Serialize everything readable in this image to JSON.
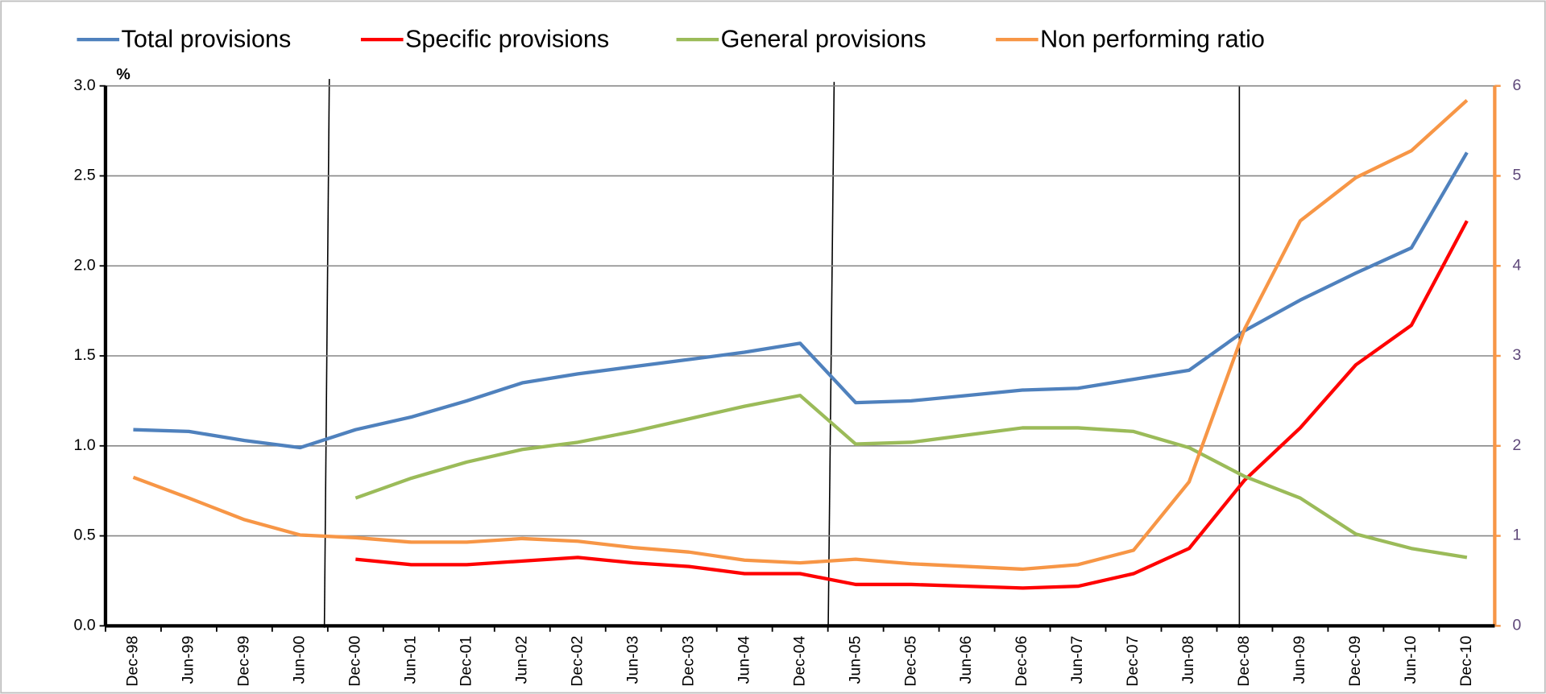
{
  "chart_data": {
    "type": "line",
    "y_unit": "%",
    "categories": [
      "Dec-98",
      "Jun-99",
      "Dec-99",
      "Jun-00",
      "Dec-00",
      "Jun-01",
      "Dec-01",
      "Jun-02",
      "Dec-02",
      "Jun-03",
      "Dec-03",
      "Jun-04",
      "Dec-04",
      "Jun-05",
      "Dec-05",
      "Jun-06",
      "Dec-06",
      "Jun-07",
      "Dec-07",
      "Jun-08",
      "Dec-08",
      "Jun-09",
      "Dec-09",
      "Jun-10",
      "Dec-10"
    ],
    "series": [
      {
        "name": "Total provisions",
        "color": "#4f81bd",
        "values": [
          1.09,
          1.08,
          1.03,
          0.99,
          1.09,
          1.16,
          1.25,
          1.35,
          1.4,
          1.44,
          1.48,
          1.52,
          1.57,
          1.24,
          1.25,
          1.28,
          1.31,
          1.32,
          1.37,
          1.42,
          1.64,
          1.81,
          1.96,
          2.1,
          2.63
        ]
      },
      {
        "name": "Specific provisions",
        "color": "#ff0000",
        "values": [
          null,
          null,
          null,
          null,
          0.37,
          0.34,
          0.34,
          0.36,
          0.38,
          0.35,
          0.33,
          0.29,
          0.29,
          0.23,
          0.23,
          0.22,
          0.21,
          0.22,
          0.29,
          0.43,
          0.81,
          1.1,
          1.45,
          1.67,
          2.25
        ]
      },
      {
        "name": "General provisions",
        "color": "#9bbb59",
        "values": [
          null,
          null,
          null,
          null,
          0.71,
          0.82,
          0.91,
          0.98,
          1.02,
          1.08,
          1.15,
          1.22,
          1.28,
          1.01,
          1.02,
          1.06,
          1.1,
          1.1,
          1.08,
          0.99,
          0.83,
          0.71,
          0.51,
          0.43,
          0.38
        ]
      },
      {
        "name": "Non performing ratio",
        "color": "#f79646",
        "axis": "y2",
        "values": [
          1.65,
          1.42,
          1.18,
          1.01,
          0.98,
          0.93,
          0.93,
          0.97,
          0.94,
          0.87,
          0.82,
          0.73,
          0.7,
          0.74,
          0.69,
          0.66,
          0.63,
          0.68,
          0.84,
          1.6,
          3.3,
          4.5,
          4.98,
          5.28,
          5.84
        ]
      }
    ],
    "ylim": [
      0,
      3
    ],
    "yticks": [
      {
        "value": 0,
        "label": "0.0"
      },
      0.5,
      {
        "value": 1,
        "label": "1.0"
      },
      1.5,
      {
        "value": 2,
        "label": "2.0"
      },
      2.5,
      {
        "value": 3,
        "label": "3.0"
      }
    ],
    "y2lim": [
      0,
      6
    ],
    "y2ticks": [
      0,
      1,
      2,
      3,
      4,
      5,
      6
    ],
    "grid": true
  }
}
